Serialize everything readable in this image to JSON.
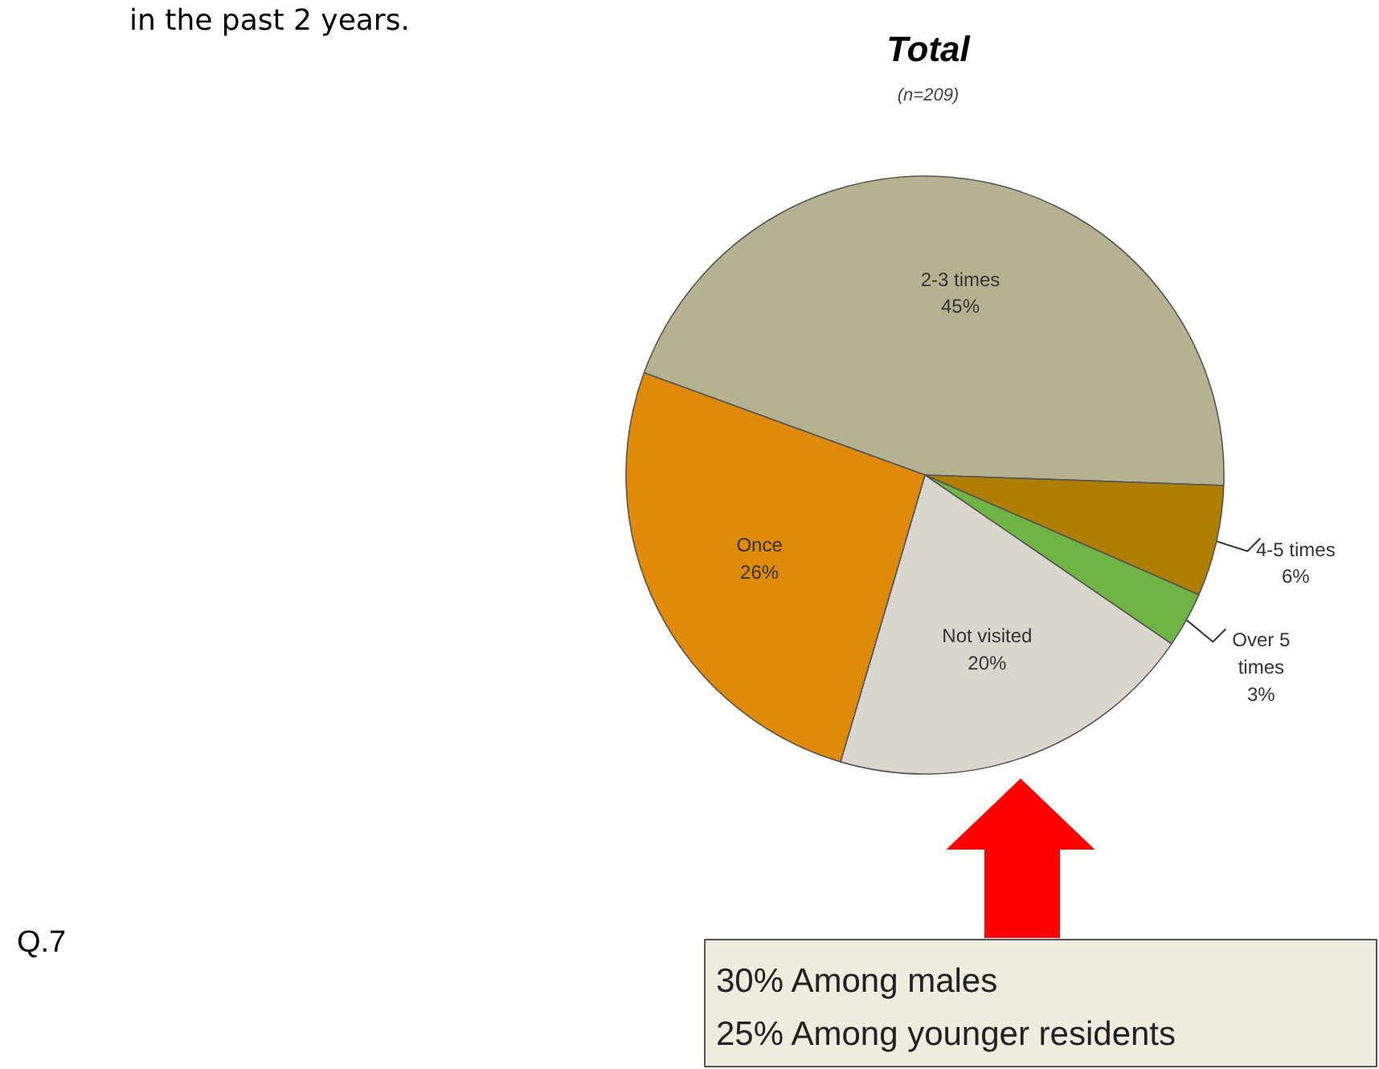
{
  "chart_data": {
    "type": "pie",
    "title": "Total",
    "subtitle": "(n=209)",
    "categories": [
      "2-3 times",
      "4-5 times",
      "Over 5 times",
      "Not visited",
      "Once"
    ],
    "values": [
      45,
      6,
      3,
      20,
      26
    ],
    "value_labels": [
      "45%",
      "6%",
      "3%",
      "20%",
      "26%"
    ],
    "colors": [
      "#b5b38f",
      "#b07f00",
      "#6fb545",
      "#d9d7cc",
      "#e08a0a"
    ],
    "annotations": [
      "in the past 2 years.",
      "Q.7",
      "30% Among males",
      "25% Among younger residents"
    ]
  }
}
